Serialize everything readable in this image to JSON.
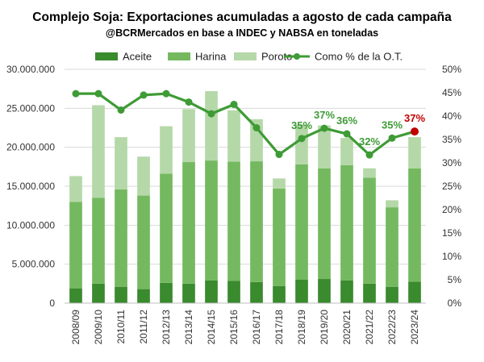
{
  "chart_data": {
    "type": "bar",
    "title": "Complejo Soja: Exportaciones acumuladas a agosto de cada campaña",
    "subtitle": "@BCRMercados en base a INDEC y NABSA en toneladas",
    "categories": [
      "2008/09",
      "2009/10",
      "2010/11",
      "2011/12",
      "2012/13",
      "2013/14",
      "2014/15",
      "2015/16",
      "2016/17",
      "2017/18",
      "2018/19",
      "2019/20",
      "2020/21",
      "2021/22",
      "2022/23",
      "2023/24"
    ],
    "series": [
      {
        "name": "Aceite",
        "stacked": true,
        "color": "#3a8a2e",
        "values": [
          1900000,
          2500000,
          2100000,
          1800000,
          2600000,
          2500000,
          2900000,
          2850000,
          2700000,
          2200000,
          3000000,
          3100000,
          2900000,
          2500000,
          2100000,
          2750000
        ]
      },
      {
        "name": "Harina",
        "stacked": true,
        "color": "#74b95f",
        "values": [
          11100000,
          11000000,
          12500000,
          12000000,
          14000000,
          15600000,
          15400000,
          15300000,
          15500000,
          12500000,
          14800000,
          14200000,
          14800000,
          13600000,
          10200000,
          14550000
        ]
      },
      {
        "name": "Poroto",
        "stacked": true,
        "color": "#b5d8a8",
        "values": [
          3300000,
          11900000,
          6700000,
          5000000,
          6100000,
          6800000,
          8900000,
          6600000,
          5400000,
          1300000,
          5100000,
          5500000,
          3500000,
          1200000,
          900000,
          4000000
        ]
      },
      {
        "name": "Como % de la O.T.",
        "axis": "right",
        "color": "#3e9b35",
        "values": [
          44.8,
          44.8,
          41.3,
          44.5,
          44.8,
          43.0,
          40.5,
          42.5,
          37.5,
          31.8,
          35.2,
          37.4,
          36.2,
          31.7,
          35.3,
          36.7
        ]
      }
    ],
    "data_labels": [
      {
        "index": 10,
        "text": "35%",
        "color": "#3e9b35"
      },
      {
        "index": 11,
        "text": "37%",
        "color": "#3e9b35"
      },
      {
        "index": 12,
        "text": "36%",
        "color": "#3e9b35"
      },
      {
        "index": 13,
        "text": "32%",
        "color": "#3e9b35"
      },
      {
        "index": 14,
        "text": "35%",
        "color": "#3e9b35"
      },
      {
        "index": 15,
        "text": "37%",
        "color": "#c00000"
      }
    ],
    "highlight_point": {
      "index": 15,
      "color": "#c00000"
    },
    "ylim": [
      0,
      30000000
    ],
    "y_ticks": [
      "0",
      "5.000.000",
      "10.000.000",
      "15.000.000",
      "20.000.000",
      "25.000.000",
      "30.000.000"
    ],
    "y2lim": [
      0,
      50
    ],
    "y2_ticks": [
      "0%",
      "5%",
      "10%",
      "15%",
      "20%",
      "25%",
      "30%",
      "35%",
      "40%",
      "45%",
      "50%"
    ],
    "legend_position": "top",
    "grid": true
  }
}
